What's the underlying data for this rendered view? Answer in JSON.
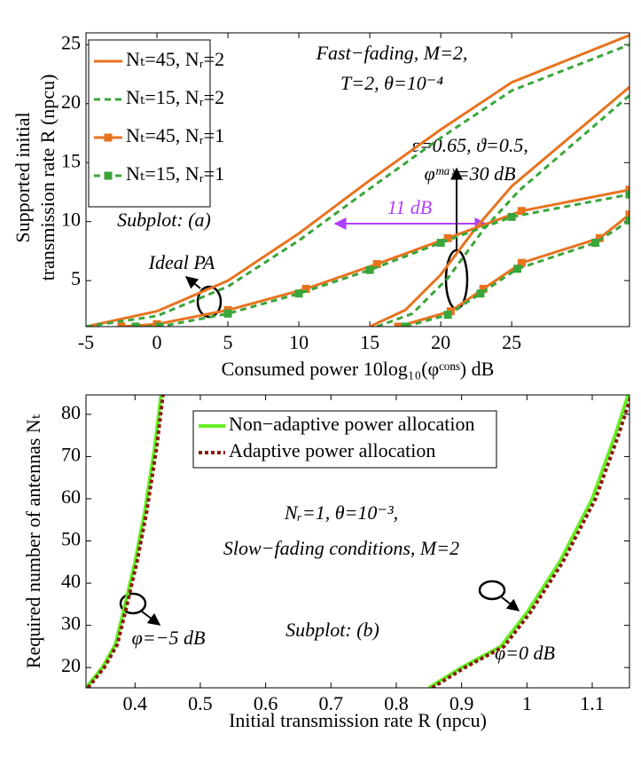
{
  "chart_data": [
    {
      "type": "line",
      "xlabel": "Consumed power 10log₁₀(φᶜᵒⁿˢ) dB",
      "ylabel": [
        "Supported initial",
        "transmission rate R (npcu)"
      ],
      "xlim": [
        -5,
        33.3
      ],
      "ylim": [
        1.1,
        26
      ],
      "xticks": [
        -5,
        0,
        5,
        10,
        15,
        20,
        25
      ],
      "yticks": [
        5,
        10,
        15,
        20,
        25
      ],
      "legend": "upper left",
      "annotations": [
        "Fast−fading, M=2,",
        "T=2, θ=10⁻⁴",
        "ε=0.65, ϑ=0.5,",
        "φᵐᵃˣ=30 dB",
        "11 dB",
        "Subplot: (a)",
        "Ideal PA"
      ],
      "series": [
        {
          "name": "Nₜ=45, Nᵣ=2",
          "color": "#e8731f",
          "dash": false,
          "marker": null,
          "x": [
            -5,
            0,
            5,
            10,
            15,
            20,
            25,
            33.3,
            null,
            15,
            17.5,
            20,
            22.5,
            25,
            33.3
          ],
          "values": [
            1.1,
            2.4,
            5,
            9,
            13.5,
            17.8,
            21.8,
            25.8,
            null,
            1.1,
            2.5,
            5.5,
            9.5,
            13,
            21.4
          ]
        },
        {
          "name": "Nₜ=15, Nᵣ=2",
          "color": "#3aa53a",
          "dash": true,
          "marker": null,
          "x": [
            -5,
            0,
            5,
            10,
            15,
            20,
            25,
            33.3,
            null,
            15.5,
            18,
            20.5,
            23,
            25.5,
            33.3
          ],
          "values": [
            1.1,
            2.0,
            4.5,
            8.4,
            12.8,
            17.1,
            21.1,
            25.0,
            null,
            1.1,
            2.2,
            5.2,
            9.3,
            12.6,
            20.7
          ]
        },
        {
          "name": "Nₜ=45, Nᵣ=1",
          "color": "#e8731f",
          "dash": false,
          "marker": "square",
          "x": [
            -2.5,
            0,
            5,
            10.5,
            15.5,
            20.5,
            25.7,
            33.3,
            null,
            17,
            20.7,
            23,
            25.7,
            31.2,
            33.3
          ],
          "values": [
            1.1,
            1.3,
            2.5,
            4.3,
            6.4,
            8.6,
            10.9,
            12.7,
            null,
            1.1,
            2.4,
            4.3,
            6.5,
            8.6,
            10.6
          ]
        },
        {
          "name": "Nₜ=15, Nᵣ=1",
          "color": "#3aa53a",
          "dash": true,
          "marker": "square",
          "x": [
            -1.5,
            0.2,
            5,
            10,
            15,
            20,
            25,
            33.3,
            null,
            17.5,
            20.5,
            22.8,
            25.4,
            30.9,
            33.3
          ],
          "values": [
            1.1,
            1.1,
            2.2,
            3.9,
            5.9,
            8.2,
            10.4,
            12.3,
            null,
            1.1,
            2.1,
            3.9,
            6.0,
            8.2,
            10.1
          ]
        }
      ]
    },
    {
      "type": "line",
      "xlabel": "Initial transmission rate R (npcu)",
      "ylabel": [
        "Required number of antennas Nₜ"
      ],
      "xlim": [
        0.325,
        1.157
      ],
      "ylim": [
        15.2,
        84.6
      ],
      "xticks": [
        0.4,
        0.5,
        0.6,
        0.7,
        0.8,
        0.9,
        1,
        1.1
      ],
      "yticks": [
        20,
        30,
        40,
        50,
        60,
        70,
        80
      ],
      "legend": "upper center",
      "annotations": [
        "Nᵣ=1, θ=10⁻³,",
        "Slow−fading conditions, M=2",
        "Subplot: (b)",
        "φ=−5 dB",
        "φ=0 dB"
      ],
      "series": [
        {
          "name": "Non−adaptive power allocation",
          "color": "#66ee22",
          "dash": false,
          "marker": null,
          "x": [
            0.325,
            0.35,
            0.37,
            0.385,
            0.4,
            0.415,
            0.43,
            0.44,
            null,
            0.85,
            0.9,
            0.96,
            1.0,
            1.05,
            1.1,
            1.135,
            1.155
          ],
          "values": [
            15.2,
            20,
            25.5,
            35,
            45,
            57,
            72,
            84.6,
            null,
            15.2,
            20,
            25,
            33,
            45,
            60,
            75,
            84.6
          ]
        },
        {
          "name": "Adaptive power allocation",
          "color": "#8b1a0a",
          "dash": true,
          "marker": null,
          "x": [
            0.328,
            0.353,
            0.373,
            0.388,
            0.403,
            0.418,
            0.433,
            0.443,
            null,
            0.855,
            0.905,
            0.965,
            1.005,
            1.055,
            1.105,
            1.14,
            1.16
          ],
          "values": [
            15.2,
            20,
            25.5,
            35,
            45,
            57,
            72,
            84.6,
            null,
            15.2,
            20,
            25,
            33,
            45,
            60,
            75,
            84.6
          ]
        }
      ]
    }
  ]
}
